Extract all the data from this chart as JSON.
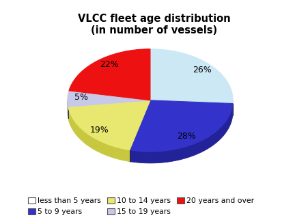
{
  "title": "VLCC fleet age distribution\n(in number of vessels)",
  "slices": [
    26,
    28,
    19,
    5,
    22
  ],
  "labels": [
    "26%",
    "28%",
    "19%",
    "5%",
    "22%"
  ],
  "colors": [
    "#cce8f4",
    "#3333cc",
    "#e8e870",
    "#c8c8e8",
    "#ee1111"
  ],
  "depth_colors": [
    "#99c4e0",
    "#222299",
    "#c8c840",
    "#9898c0",
    "#cc0000"
  ],
  "edge_color": "#222222",
  "legend_labels": [
    "less than 5 years",
    "5 to 9 years",
    "10 to 14 years",
    "15 to 19 years",
    "20 years and over"
  ],
  "legend_colors": [
    "#ffffff",
    "#3333cc",
    "#e8e870",
    "#c8c8e8",
    "#ee1111"
  ],
  "startangle": 90,
  "background_color": "#ffffff",
  "title_fontsize": 10.5
}
